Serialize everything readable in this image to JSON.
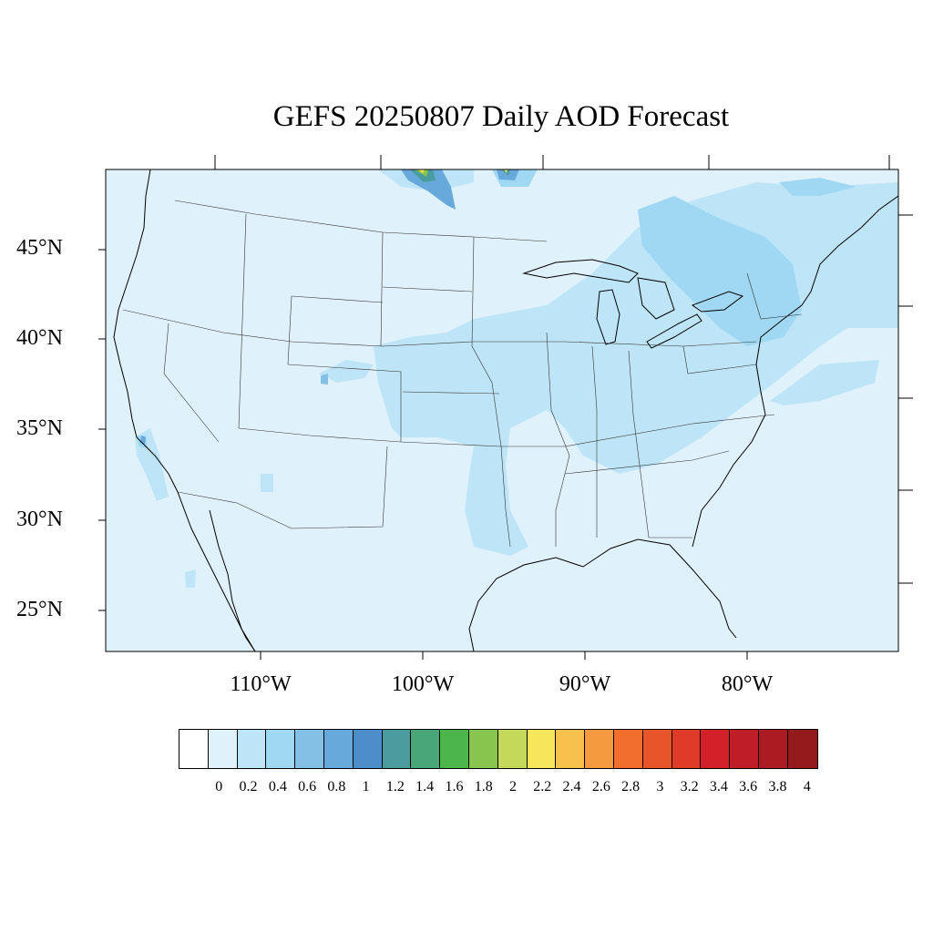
{
  "title": "GEFS 20250807 Daily AOD Forecast",
  "latitude_labels": [
    "45°N",
    "40°N",
    "35°N",
    "30°N",
    "25°N"
  ],
  "longitude_labels": [
    "110°W",
    "100°W",
    "90°W",
    "80°W"
  ],
  "colorbar": {
    "colors": [
      "#ffffff",
      "#dff1fa",
      "#bde5f7",
      "#a0d8f3",
      "#84c0e5",
      "#68a9dc",
      "#4d8ec9",
      "#4a9c9e",
      "#48a678",
      "#4cb64c",
      "#88c54e",
      "#c4d85a",
      "#f7e65c",
      "#f7c14b",
      "#f59a3f",
      "#f26e2e",
      "#e9552b",
      "#e03a29",
      "#d32129",
      "#bf1e28",
      "#ac1b22",
      "#951a1c"
    ],
    "labels": [
      "0",
      "0.2",
      "0.4",
      "0.6",
      "0.8",
      "1",
      "1.2",
      "1.4",
      "1.6",
      "1.8",
      "2",
      "2.2",
      "2.4",
      "2.6",
      "2.8",
      "3",
      "3.2",
      "3.4",
      "3.6",
      "3.8",
      "4"
    ]
  },
  "colors": {
    "background_aod": "#dff1fa",
    "aod_0_4": "#bde5f7",
    "aod_0_6": "#a0d8f3",
    "aod_1_2": "#4a9c9e",
    "aod_1_8": "#88c54e",
    "aod_2_2": "#f7e65c"
  }
}
